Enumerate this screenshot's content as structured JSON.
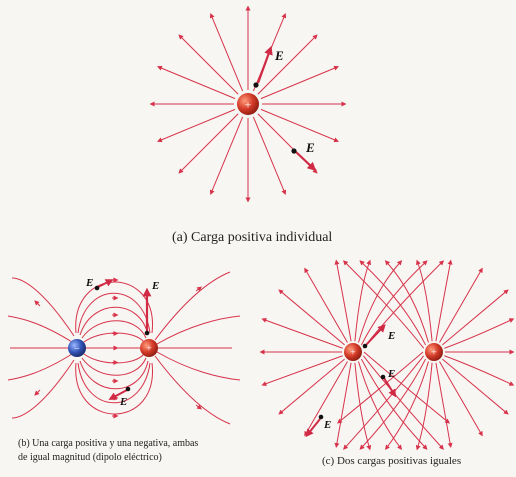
{
  "colors": {
    "field_line": "#d8334b",
    "field_vector": "#d02a45",
    "positive_charge": "#c0392b",
    "negative_charge": "#2f4a9e",
    "text": "#222222",
    "background": "#f7f6f2"
  },
  "panel_a": {
    "caption": "(a) Carga positiva individual",
    "charge_symbol": "+",
    "field_label": "E",
    "vector_labels": [
      "E",
      "E"
    ]
  },
  "panel_b": {
    "caption_line1": "(b) Una carga positiva y una negativa, ambas",
    "caption_line2": "de igual magnitud (dipolo eléctrico)",
    "positive_symbol": "+",
    "negative_symbol": "−",
    "vector_labels": [
      "E",
      "E",
      "E"
    ]
  },
  "panel_c": {
    "caption": "(c) Dos cargas positivas iguales",
    "charge_symbols": [
      "+",
      "+"
    ],
    "vector_labels": [
      "E",
      "E",
      "E"
    ]
  }
}
